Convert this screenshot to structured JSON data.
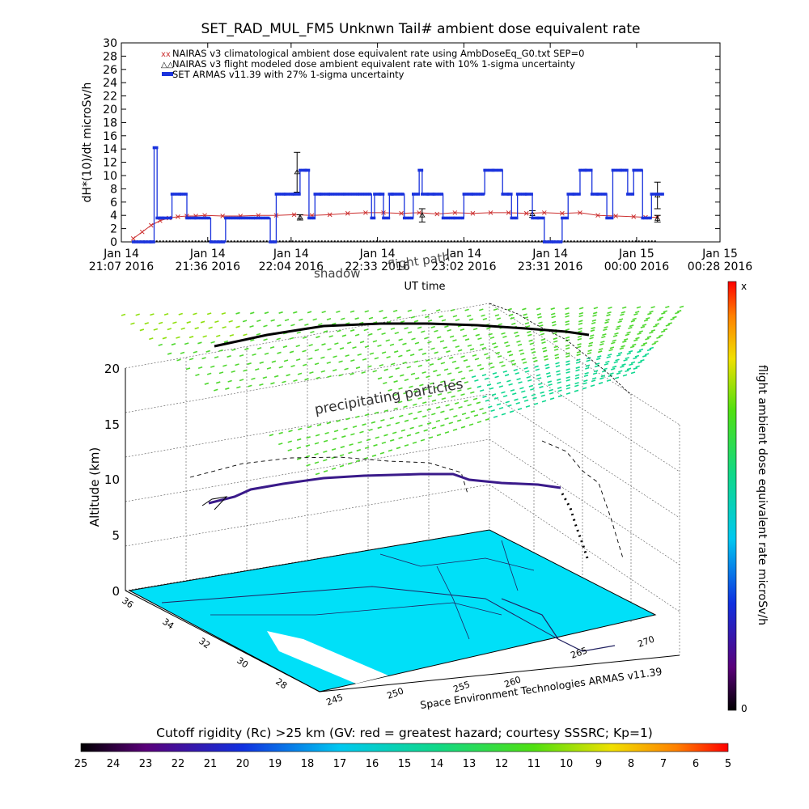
{
  "chart_data": [
    {
      "type": "line",
      "title": "SET_RAD_MUL_FM5 Unknwn Tail#  ambient dose equivalent rate",
      "ylabel": "dH*(10)/dt microSv/h",
      "xlabel": "UT time",
      "ylim": [
        0,
        30
      ],
      "yticks": [
        0,
        2,
        4,
        6,
        8,
        10,
        12,
        14,
        16,
        18,
        20,
        22,
        24,
        26,
        28,
        30
      ],
      "xlim": [
        0,
        201
      ],
      "xtick_values": [
        0,
        29,
        57,
        86,
        115,
        144,
        173,
        201
      ],
      "xticks": [
        {
          "top": "Jan 14",
          "bottom": "21:07 2016"
        },
        {
          "top": "Jan 14",
          "bottom": "21:36 2016"
        },
        {
          "top": "Jan 14",
          "bottom": "22:04 2016"
        },
        {
          "top": "Jan 14",
          "bottom": "22:33 2016"
        },
        {
          "top": "Jan 14",
          "bottom": "23:02 2016"
        },
        {
          "top": "Jan 14",
          "bottom": "23:31 2016"
        },
        {
          "top": "Jan 15",
          "bottom": "00:00 2016"
        },
        {
          "top": "Jan 15",
          "bottom": "00:28 2016"
        }
      ],
      "legend_position": "top-left",
      "series": [
        {
          "name": "NAIRAS v3 climatological ambient dose equivalent rate using AmbDoseEq_G0.txt SEP=0",
          "color": "#cc3030",
          "marker": "x",
          "x": [
            4,
            7,
            10,
            13,
            16,
            19,
            22,
            25,
            28,
            34,
            40,
            46,
            52,
            58,
            64,
            70,
            76,
            82,
            88,
            94,
            100,
            106,
            112,
            118,
            124,
            130,
            136,
            142,
            148,
            154,
            160,
            166,
            172,
            176,
            180
          ],
          "y": [
            0.5,
            1.5,
            2.5,
            3.2,
            3.6,
            3.8,
            3.9,
            3.9,
            4.0,
            3.9,
            3.9,
            4.0,
            4.0,
            4.1,
            4.0,
            4.1,
            4.3,
            4.4,
            4.4,
            4.3,
            4.4,
            4.2,
            4.4,
            4.3,
            4.4,
            4.4,
            4.3,
            4.4,
            4.3,
            4.4,
            4.0,
            3.9,
            3.8,
            3.7,
            3.7
          ]
        },
        {
          "name": "NAIRAS v3 flight modeled dose ambient equivalent rate with 10% 1-sigma uncertainty",
          "color": "#000000",
          "marker": "triangle",
          "x": [
            4,
            180
          ],
          "y": [
            0,
            0
          ],
          "error_points": [
            {
              "x": 59,
              "y": 10.5,
              "err": 3.0
            },
            {
              "x": 60,
              "y": 3.7,
              "err": 0.4
            },
            {
              "x": 101,
              "y": 4.0,
              "err": 1.0
            },
            {
              "x": 138,
              "y": 4.2,
              "err": 0.5
            },
            {
              "x": 180,
              "y": 3.5,
              "err": 0.5
            },
            {
              "x": 180,
              "y": 7.0,
              "err": 2.0
            }
          ]
        },
        {
          "name": "SET ARMAS v11.39 with 27% 1-sigma uncertainty",
          "color": "#1a33dd",
          "marker": "square",
          "x": [
            4,
            8,
            10,
            11,
            12,
            13,
            14,
            17,
            20,
            22,
            25,
            30,
            35,
            40,
            45,
            50,
            52,
            55,
            58,
            60,
            62,
            63,
            65,
            67,
            70,
            75,
            80,
            84,
            85,
            87,
            88,
            90,
            91,
            95,
            98,
            100,
            101,
            103,
            105,
            108,
            112,
            115,
            118,
            122,
            125,
            128,
            130,
            131,
            133,
            136,
            138,
            140,
            142,
            145,
            148,
            150,
            152,
            154,
            156,
            158,
            160,
            163,
            165,
            168,
            170,
            172,
            175,
            178,
            180
          ],
          "y": [
            0,
            0,
            0,
            14.2,
            3.6,
            3.6,
            3.6,
            7.2,
            7.2,
            3.6,
            3.6,
            0,
            3.6,
            3.6,
            3.6,
            0,
            7.2,
            7.2,
            7.2,
            10.8,
            10.8,
            3.6,
            7.2,
            7.2,
            7.2,
            7.2,
            7.2,
            3.6,
            7.2,
            7.2,
            3.6,
            7.2,
            7.2,
            3.6,
            7.2,
            10.8,
            7.2,
            7.2,
            7.2,
            3.6,
            3.6,
            7.2,
            7.2,
            10.8,
            10.8,
            7.2,
            7.2,
            3.6,
            7.2,
            7.2,
            3.6,
            3.6,
            0,
            0,
            3.6,
            7.2,
            7.2,
            10.8,
            10.8,
            7.2,
            7.2,
            3.6,
            10.8,
            10.8,
            7.2,
            10.8,
            3.6,
            7.2,
            7.2
          ]
        }
      ]
    },
    {
      "type": "other",
      "title": "",
      "zlabel": "Altitude (km)",
      "zticks": [
        "0",
        "5",
        "10",
        "15",
        "20"
      ],
      "lat_ticks": [
        "36",
        "34",
        "32",
        "30",
        "28"
      ],
      "lon_ticks": [
        "245",
        "250",
        "255",
        "260",
        "265",
        "270"
      ],
      "annotations": [
        "precipitating particles",
        "shadow",
        "flight path",
        "Space Environment Technologies ARMAS v11.39"
      ],
      "colorbar_right": {
        "label": "flight ambient dose equivalent rate microSv/h",
        "top": "x",
        "bottom": "0"
      },
      "colorbar_bottom": {
        "label": "Cutoff rigidity (Rc) >25 km (GV: red = greatest hazard; courtesy SSSRC; Kp=1)",
        "ticks": [
          "25",
          "24",
          "23",
          "22",
          "21",
          "20",
          "19",
          "18",
          "17",
          "16",
          "15",
          "14",
          "13",
          "12",
          "11",
          "10",
          "9",
          "8",
          "7",
          "6",
          "5"
        ]
      }
    }
  ]
}
